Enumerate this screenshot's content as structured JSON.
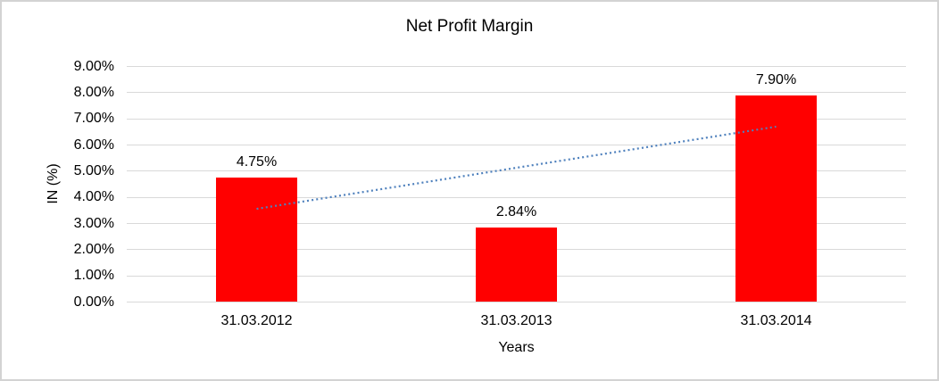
{
  "chart_data": {
    "type": "bar",
    "title": "Net Profit Margin",
    "categories": [
      "31.03.2012",
      "31.03.2013",
      "31.03.2014"
    ],
    "values": [
      4.75,
      2.84,
      7.9
    ],
    "data_labels": [
      "4.75%",
      "2.84%",
      "7.90%"
    ],
    "xlabel": "Years",
    "ylabel": "IN (%)",
    "ylim": [
      0,
      9
    ],
    "y_tick_values": [
      0,
      1,
      2,
      3,
      4,
      5,
      6,
      7,
      8,
      9
    ],
    "y_tick_labels": [
      "0.00%",
      "1.00%",
      "2.00%",
      "3.00%",
      "4.00%",
      "5.00%",
      "6.00%",
      "7.00%",
      "8.00%",
      "9.00%"
    ],
    "grid": true,
    "legend": "none",
    "bar_color": "#ff0000",
    "gridline_color": "#d9d9d9",
    "frame_color": "#d3d3d3",
    "trendline": {
      "type": "linear",
      "style": "dotted",
      "color": "#4f81bd",
      "start_value": 3.56,
      "end_value": 6.7
    }
  }
}
